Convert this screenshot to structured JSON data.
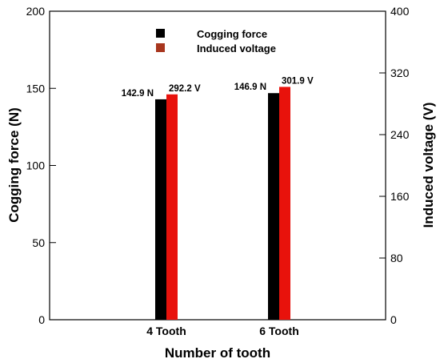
{
  "chart_data": {
    "type": "bar",
    "categories": [
      "4 Tooth",
      "6 Tooth"
    ],
    "series": [
      {
        "name": "Cogging force",
        "axis": "left",
        "values": [
          142.9,
          146.9
        ],
        "labels": [
          "142.9 N",
          "146.9 N"
        ],
        "color": "#000000"
      },
      {
        "name": "Induced voltage",
        "axis": "right",
        "values": [
          292.2,
          301.9
        ],
        "labels": [
          "292.2 V",
          "301.9 V"
        ],
        "color": "#e8120c"
      }
    ],
    "legend_swatch_colors": [
      "#000000",
      "#a8361e"
    ],
    "xlabel": "Number of tooth",
    "ylabel_left": "Cogging force (N)",
    "ylabel_right": "Induced voltage (V)",
    "ylim_left": [
      0,
      200
    ],
    "yticks_left": [
      "0",
      "50",
      "100",
      "150",
      "200"
    ],
    "ylim_right": [
      0,
      400
    ],
    "yticks_right": [
      "0",
      "80",
      "160",
      "240",
      "320",
      "400"
    ],
    "legend_position": "top-center",
    "grid": false
  }
}
